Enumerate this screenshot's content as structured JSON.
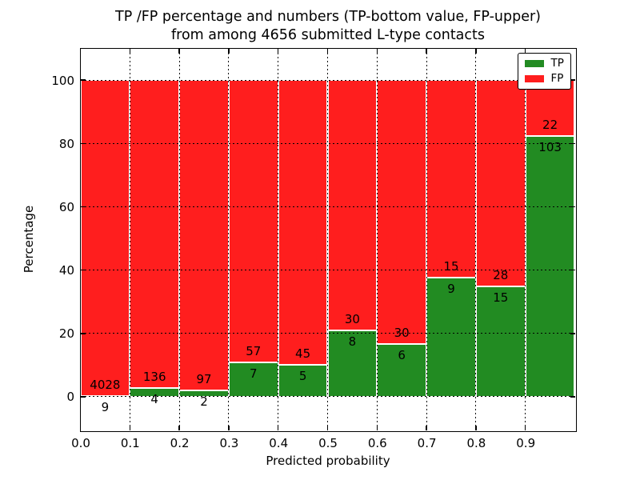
{
  "figure_title": {
    "line1": "TP /FP percentage and numbers (TP-bottom value, FP-upper)",
    "line2": "from among 4656 submitted L-type contacts"
  },
  "chart_data": {
    "type": "bar",
    "stacking": "percent",
    "title": "TP /FP percentage and numbers (TP-bottom value, FP-upper) from among 4656 submitted L-type contacts",
    "xlabel": "Predicted probability",
    "ylabel": "Percentage",
    "bin_edges": [
      0.0,
      0.1,
      0.2,
      0.3,
      0.4,
      0.5,
      0.6,
      0.7,
      0.8,
      0.9,
      1.0
    ],
    "x_tick_labels": [
      "0.0",
      "0.1",
      "0.2",
      "0.3",
      "0.4",
      "0.5",
      "0.6",
      "0.7",
      "0.8",
      "0.9"
    ],
    "y_ticks": [
      0,
      20,
      40,
      60,
      80,
      100
    ],
    "y_tick_labels": [
      "0",
      "20",
      "40",
      "60",
      "80",
      "100"
    ],
    "xlim": [
      0.0,
      1.0
    ],
    "ylim": [
      -10.5,
      110
    ],
    "grid": {
      "style": "dotted",
      "color": "#000000"
    },
    "legend": {
      "position": "upper-right",
      "entries": [
        {
          "label": "TP",
          "color": "#228b22"
        },
        {
          "label": "FP",
          "color": "#ff1e1e"
        }
      ]
    },
    "series": [
      {
        "name": "TP",
        "color": "#228b22",
        "stack_position": "bottom",
        "counts": [
          9,
          4,
          2,
          7,
          5,
          8,
          6,
          9,
          15,
          103
        ]
      },
      {
        "name": "FP",
        "color": "#ff1e1e",
        "stack_position": "top",
        "counts": [
          4028,
          136,
          97,
          57,
          45,
          30,
          30,
          15,
          28,
          22
        ]
      }
    ],
    "derived_tp_percent": [
      0.22,
      2.86,
      2.02,
      10.94,
      10.0,
      21.05,
      16.67,
      37.5,
      34.88,
      82.4
    ],
    "total_contacts": 4656
  },
  "colors": {
    "tp_green": "#228b22",
    "fp_red": "#ff1e1e",
    "bar_edge": "#ffffff",
    "frame": "#000000",
    "background": "#ffffff"
  }
}
